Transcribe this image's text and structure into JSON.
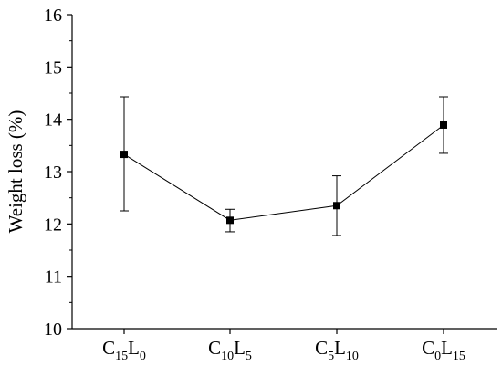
{
  "chart_data": {
    "type": "line",
    "title": "",
    "xlabel": "",
    "ylabel": "Weight loss (%)",
    "ylim": [
      10,
      16
    ],
    "yticks": [
      10,
      11,
      12,
      13,
      14,
      15,
      16
    ],
    "categories": [
      {
        "base1": "C",
        "sub1": "15",
        "base2": "L",
        "sub2": "0"
      },
      {
        "base1": "C",
        "sub1": "10",
        "base2": "L",
        "sub2": "5"
      },
      {
        "base1": "C",
        "sub1": "5",
        "base2": "L",
        "sub2": "10"
      },
      {
        "base1": "C",
        "sub1": "0",
        "base2": "L",
        "sub2": "15"
      }
    ],
    "series": [
      {
        "values": [
          13.33,
          12.07,
          12.35,
          13.89
        ],
        "error_low": [
          12.25,
          11.85,
          11.78,
          13.35
        ],
        "error_high": [
          14.43,
          12.28,
          12.92,
          14.43
        ]
      }
    ],
    "grid": false,
    "marker": "square",
    "color": "#000000"
  }
}
